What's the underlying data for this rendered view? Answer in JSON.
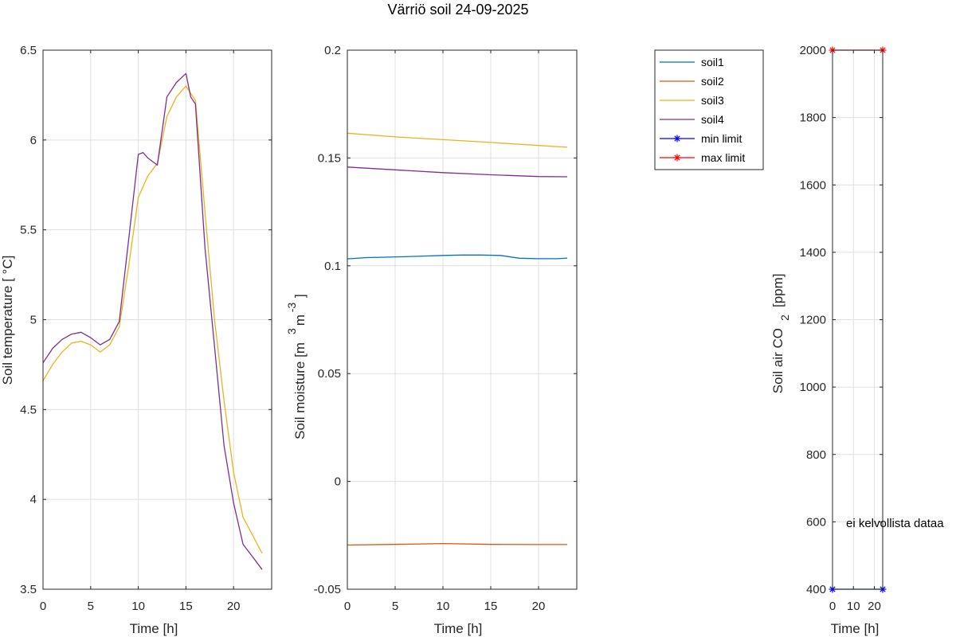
{
  "title": "Värriö soil 24-09-2025",
  "chart_data": [
    {
      "type": "line",
      "xlabel": "Time [h]",
      "ylabel": "Soil temperature [      °C]",
      "xlim": [
        0,
        24
      ],
      "ylim": [
        3.5,
        6.5
      ],
      "xticks": [
        0,
        5,
        10,
        15,
        20
      ],
      "yticks": [
        3.5,
        4,
        4.5,
        5,
        5.5,
        6,
        6.5
      ],
      "yticklabels": [
        "3.5",
        "4",
        "4.5",
        "5",
        "5.5",
        "6",
        "6.5"
      ],
      "grid": true,
      "series": [
        {
          "name": "soil3",
          "color": "#EDB120",
          "x": [
            0,
            1,
            2,
            3,
            4,
            5,
            6,
            7,
            8,
            9,
            10,
            11,
            12,
            13,
            14,
            15,
            16,
            17,
            18,
            19,
            20,
            21,
            22,
            23
          ],
          "y": [
            4.66,
            4.75,
            4.82,
            4.87,
            4.88,
            4.86,
            4.82,
            4.86,
            4.96,
            5.3,
            5.68,
            5.8,
            5.87,
            6.13,
            6.24,
            6.3,
            6.22,
            5.6,
            5.0,
            4.55,
            4.15,
            3.9,
            3.8,
            3.7
          ]
        },
        {
          "name": "soil4",
          "color": "#7E2F8E",
          "x": [
            0,
            1,
            2,
            3,
            4,
            5,
            6,
            7,
            8,
            9,
            10,
            10.5,
            11,
            12,
            13,
            14,
            15,
            15.5,
            16,
            17,
            18,
            19,
            20,
            21,
            22,
            23
          ],
          "y": [
            4.76,
            4.84,
            4.89,
            4.92,
            4.93,
            4.9,
            4.86,
            4.89,
            4.99,
            5.45,
            5.92,
            5.93,
            5.9,
            5.86,
            6.24,
            6.32,
            6.37,
            6.24,
            6.2,
            5.4,
            4.85,
            4.3,
            3.98,
            3.75,
            3.68,
            3.61
          ]
        }
      ]
    },
    {
      "type": "line",
      "xlabel": "Time [h]",
      "ylabel": "Soil moisture [m",
      "ylabel_sup1": "3",
      "ylabel_mid": "m",
      "ylabel_sup2": "-3",
      "ylabel_end": "]",
      "xlim": [
        0,
        24
      ],
      "ylim": [
        -0.05,
        0.2
      ],
      "xticks": [
        0,
        5,
        10,
        15,
        20
      ],
      "yticks": [
        -0.05,
        0,
        0.05,
        0.1,
        0.15,
        0.2
      ],
      "yticklabels": [
        "-0.05",
        "0",
        "0.05",
        "0.1",
        "0.15",
        "0.2"
      ],
      "grid": true,
      "series": [
        {
          "name": "soil1",
          "color": "#0072BD",
          "x": [
            0,
            2,
            4,
            6,
            8,
            10,
            12,
            14,
            16,
            18,
            20,
            22,
            23
          ],
          "y": [
            0.1032,
            0.1038,
            0.104,
            0.1042,
            0.1045,
            0.1048,
            0.105,
            0.105,
            0.1048,
            0.1035,
            0.1033,
            0.1033,
            0.1036
          ]
        },
        {
          "name": "soil2",
          "color": "#D95319",
          "x": [
            0,
            5,
            10,
            15,
            20,
            23
          ],
          "y": [
            -0.0295,
            -0.0292,
            -0.0288,
            -0.0292,
            -0.0293,
            -0.0293
          ]
        },
        {
          "name": "soil3",
          "color": "#EDB120",
          "x": [
            0,
            5,
            10,
            15,
            20,
            23
          ],
          "y": [
            0.1615,
            0.1598,
            0.1585,
            0.1572,
            0.1558,
            0.155
          ]
        },
        {
          "name": "soil4",
          "color": "#7E2F8E",
          "x": [
            0,
            5,
            10,
            15,
            20,
            23
          ],
          "y": [
            0.1458,
            0.1445,
            0.1432,
            0.1422,
            0.1414,
            0.1413
          ]
        }
      ]
    },
    {
      "type": "line",
      "xlabel": "Time [h]",
      "ylabel": "Soil air CO",
      "ylabel_sub": "2",
      "ylabel_end": "[ppm]",
      "xlim": [
        0,
        24
      ],
      "ylim": [
        400,
        2000
      ],
      "xticks": [
        0,
        10,
        20
      ],
      "yticks": [
        400,
        600,
        800,
        1000,
        1200,
        1400,
        1600,
        1800,
        2000
      ],
      "yticklabels": [
        "400",
        "600",
        "800",
        "1000",
        "1200",
        "1400",
        "1600",
        "1800",
        "2000"
      ],
      "grid": true,
      "annotation": "ei kelvollista dataa",
      "annotation_at": [
        4,
        600
      ],
      "series": [
        {
          "name": "min limit",
          "color": "#0000FF",
          "marker": "*",
          "x": [
            0,
            24
          ],
          "y": [
            400,
            400
          ]
        },
        {
          "name": "max limit",
          "color": "#FF0000",
          "marker": "*",
          "x": [
            0,
            24
          ],
          "y": [
            2000,
            2000
          ]
        }
      ]
    }
  ],
  "legend": {
    "placement": "between-moisture-and-co2",
    "entries": [
      {
        "label": "soil1",
        "color": "#0072BD",
        "marker": ""
      },
      {
        "label": "soil2",
        "color": "#D95319",
        "marker": ""
      },
      {
        "label": "soil3",
        "color": "#EDB120",
        "marker": ""
      },
      {
        "label": "soil4",
        "color": "#7E2F8E",
        "marker": ""
      },
      {
        "label": "min limit",
        "color": "#0000FF",
        "marker": "*"
      },
      {
        "label": "max limit",
        "color": "#FF0000",
        "marker": "*"
      }
    ]
  }
}
